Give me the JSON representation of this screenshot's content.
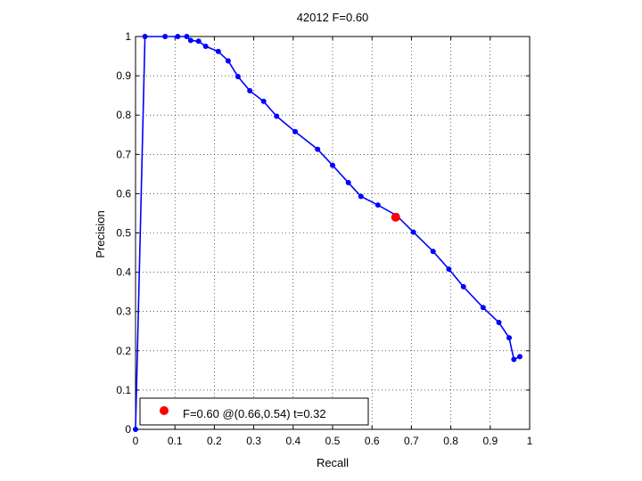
{
  "chart_data": {
    "type": "line",
    "title": "42012 F=0.60",
    "xlabel": "Recall",
    "ylabel": "Precision",
    "xlim": [
      0,
      1
    ],
    "ylim": [
      0,
      1
    ],
    "xticks": [
      0,
      0.1,
      0.2,
      0.3,
      0.4,
      0.5,
      0.6,
      0.7,
      0.8,
      0.9,
      1
    ],
    "yticks": [
      0,
      0.1,
      0.2,
      0.3,
      0.4,
      0.5,
      0.6,
      0.7,
      0.8,
      0.9,
      1
    ],
    "xtick_labels": [
      "0",
      "0.1",
      "0.2",
      "0.3",
      "0.4",
      "0.5",
      "0.6",
      "0.7",
      "0.8",
      "0.9",
      "1"
    ],
    "ytick_labels": [
      "0",
      "0.1",
      "0.2",
      "0.3",
      "0.4",
      "0.5",
      "0.6",
      "0.7",
      "0.8",
      "0.9",
      "1"
    ],
    "grid": true,
    "series": [
      {
        "color": "#0000ff",
        "marker": "circle",
        "x": [
          0.0,
          0.024,
          0.075,
          0.107,
          0.13,
          0.14,
          0.16,
          0.178,
          0.21,
          0.235,
          0.26,
          0.29,
          0.325,
          0.358,
          0.405,
          0.462,
          0.5,
          0.54,
          0.572,
          0.615,
          0.663,
          0.705,
          0.755,
          0.795,
          0.832,
          0.882,
          0.922,
          0.948,
          0.96,
          0.975
        ],
        "y": [
          0.0,
          1.0,
          1.0,
          1.0,
          1.0,
          0.99,
          0.988,
          0.975,
          0.962,
          0.938,
          0.898,
          0.862,
          0.835,
          0.797,
          0.758,
          0.713,
          0.672,
          0.628,
          0.593,
          0.571,
          0.544,
          0.502,
          0.453,
          0.408,
          0.363,
          0.31,
          0.272,
          0.233,
          0.178,
          0.185
        ]
      }
    ],
    "highlight": {
      "x": 0.66,
      "y": 0.54,
      "color": "#ff0000",
      "legend_label": "F=0.60 @(0.66,0.54) t=0.32"
    },
    "legend_placement": "bottom-left"
  }
}
